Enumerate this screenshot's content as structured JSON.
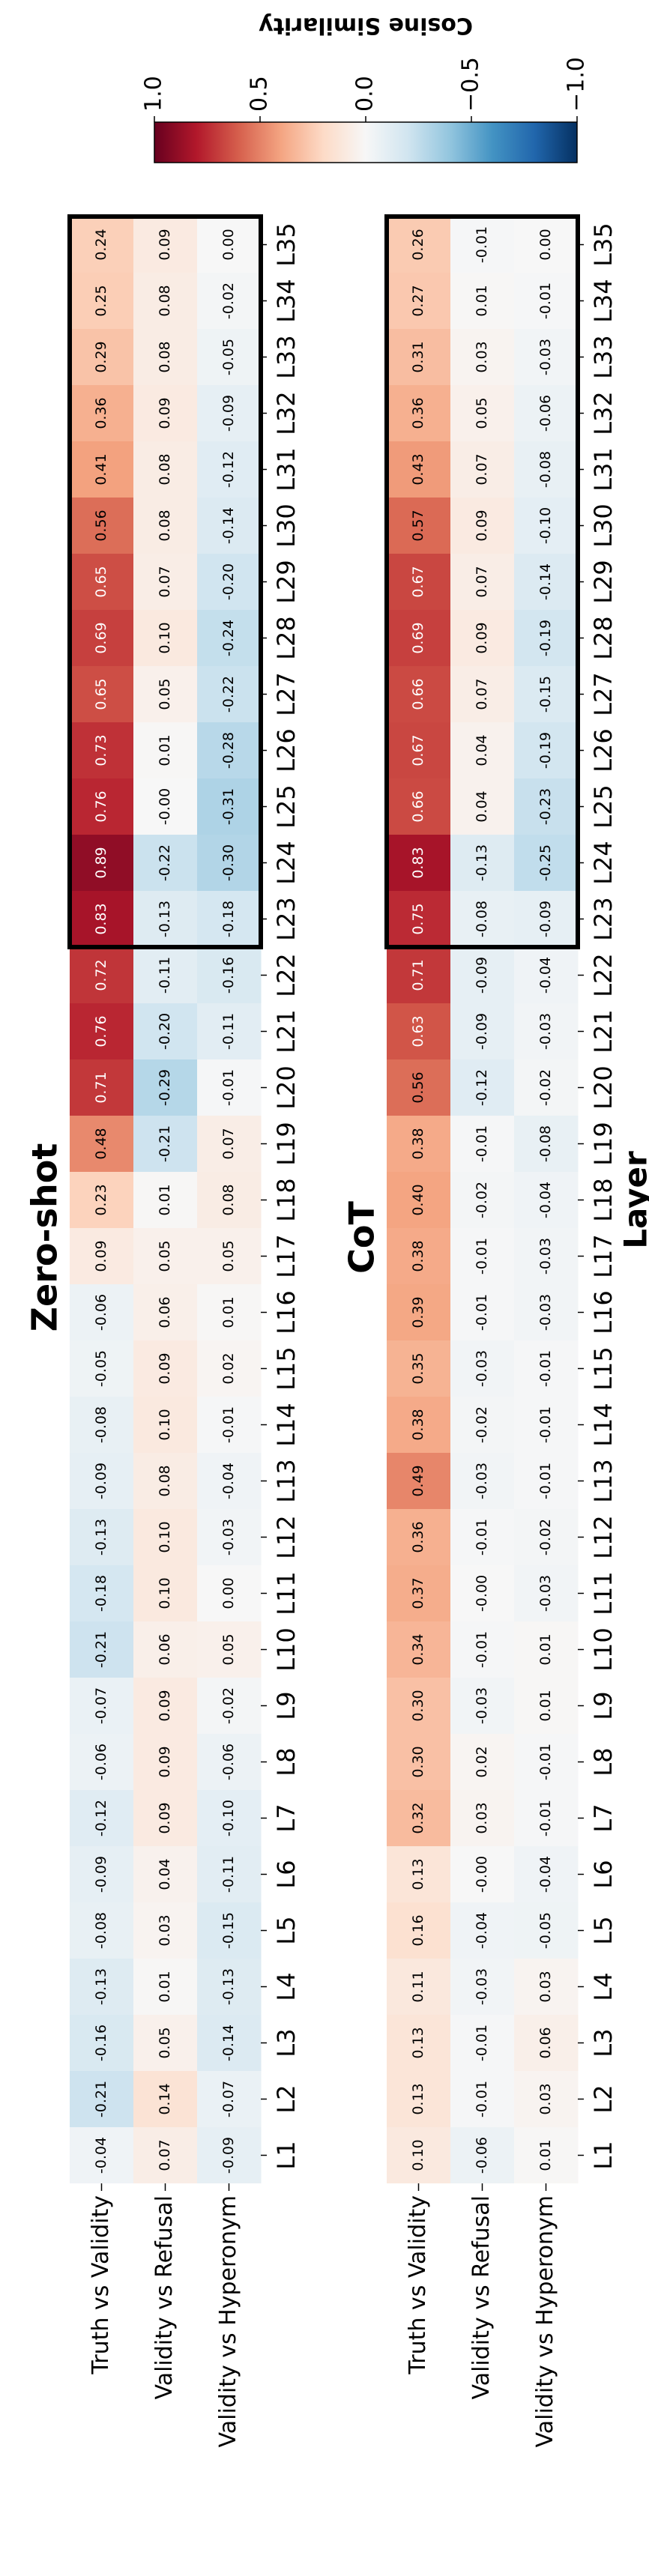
{
  "chart_data": [
    {
      "type": "heatmap",
      "title": "Zero-shot",
      "categories": [
        "L1",
        "L2",
        "L3",
        "L4",
        "L5",
        "L6",
        "L7",
        "L8",
        "L9",
        "L10",
        "L11",
        "L12",
        "L13",
        "L14",
        "L15",
        "L16",
        "L17",
        "L18",
        "L19",
        "L20",
        "L21",
        "L22",
        "L23",
        "L24",
        "L25",
        "L26",
        "L27",
        "L28",
        "L29",
        "L30",
        "L31",
        "L32",
        "L33",
        "L34",
        "L35"
      ],
      "series": [
        {
          "name": "Truth vs Validity",
          "values": [
            -0.04,
            -0.21,
            -0.16,
            -0.13,
            -0.08,
            -0.09,
            -0.12,
            -0.06,
            -0.07,
            -0.21,
            -0.18,
            -0.13,
            -0.09,
            -0.08,
            -0.05,
            -0.06,
            0.09,
            0.23,
            0.48,
            0.71,
            0.76,
            0.72,
            0.83,
            0.89,
            0.76,
            0.73,
            0.65,
            0.69,
            0.65,
            0.56,
            0.41,
            0.36,
            0.29,
            0.25,
            0.24
          ],
          "value_labels": [
            "-0.04",
            "-0.21",
            "-0.16",
            "-0.13",
            "-0.08",
            "-0.09",
            "-0.12",
            "-0.06",
            "-0.07",
            "-0.21",
            "-0.18",
            "-0.13",
            "-0.09",
            "-0.08",
            "-0.05",
            "-0.06",
            "0.09",
            "0.23",
            "0.48",
            "0.71",
            "0.76",
            "0.72",
            "0.83",
            "0.89",
            "0.76",
            "0.73",
            "0.65",
            "0.69",
            "0.65",
            "0.56",
            "0.41",
            "0.36",
            "0.29",
            "0.25",
            "0.24"
          ]
        },
        {
          "name": "Validity vs Refusal",
          "values": [
            0.07,
            0.14,
            0.05,
            0.01,
            0.03,
            0.04,
            0.09,
            0.09,
            0.09,
            0.06,
            0.1,
            0.1,
            0.08,
            0.1,
            0.09,
            0.06,
            0.05,
            0.01,
            -0.21,
            -0.29,
            -0.2,
            -0.11,
            -0.13,
            -0.22,
            0,
            0.01,
            0.05,
            0.1,
            0.07,
            0.08,
            0.08,
            0.09,
            0.08,
            0.08,
            0.09
          ],
          "value_labels": [
            "0.07",
            "0.14",
            "0.05",
            "0.01",
            "0.03",
            "0.04",
            "0.09",
            "0.09",
            "0.09",
            "0.06",
            "0.10",
            "0.10",
            "0.08",
            "0.10",
            "0.09",
            "0.06",
            "0.05",
            "0.01",
            "-0.21",
            "-0.29",
            "-0.20",
            "-0.11",
            "-0.13",
            "-0.22",
            "-0.00",
            "0.01",
            "0.05",
            "0.10",
            "0.07",
            "0.08",
            "0.08",
            "0.09",
            "0.08",
            "0.08",
            "0.09"
          ]
        },
        {
          "name": "Validity vs Hyperonym",
          "values": [
            -0.09,
            -0.07,
            -0.14,
            -0.13,
            -0.15,
            -0.11,
            -0.1,
            -0.06,
            -0.02,
            0.05,
            0,
            -0.03,
            -0.04,
            -0.01,
            0.02,
            0.01,
            0.05,
            0.08,
            0.07,
            -0.01,
            -0.11,
            -0.16,
            -0.18,
            -0.3,
            -0.31,
            -0.28,
            -0.22,
            -0.24,
            -0.2,
            -0.14,
            -0.12,
            -0.09,
            -0.05,
            -0.02,
            0
          ],
          "value_labels": [
            "-0.09",
            "-0.07",
            "-0.14",
            "-0.13",
            "-0.15",
            "-0.11",
            "-0.10",
            "-0.06",
            "-0.02",
            "0.05",
            "0.00",
            "-0.03",
            "-0.04",
            "-0.01",
            "0.02",
            "0.01",
            "0.05",
            "0.08",
            "0.07",
            "-0.01",
            "-0.11",
            "-0.16",
            "-0.18",
            "-0.30",
            "-0.31",
            "-0.28",
            "-0.22",
            "-0.24",
            "-0.20",
            "-0.14",
            "-0.12",
            "-0.09",
            "-0.05",
            "-0.02",
            "0.00"
          ]
        }
      ]
    },
    {
      "type": "heatmap",
      "title": "CoT",
      "xlabel": "Layer",
      "categories": [
        "L1",
        "L2",
        "L3",
        "L4",
        "L5",
        "L6",
        "L7",
        "L8",
        "L9",
        "L10",
        "L11",
        "L12",
        "L13",
        "L14",
        "L15",
        "L16",
        "L17",
        "L18",
        "L19",
        "L20",
        "L21",
        "L22",
        "L23",
        "L24",
        "L25",
        "L26",
        "L27",
        "L28",
        "L29",
        "L30",
        "L31",
        "L32",
        "L33",
        "L34",
        "L35"
      ],
      "series": [
        {
          "name": "Truth vs Validity",
          "values": [
            0.1,
            0.13,
            0.13,
            0.11,
            0.16,
            0.13,
            0.32,
            0.3,
            0.3,
            0.34,
            0.37,
            0.36,
            0.49,
            0.38,
            0.35,
            0.39,
            0.38,
            0.4,
            0.38,
            0.56,
            0.63,
            0.71,
            0.75,
            0.83,
            0.66,
            0.67,
            0.66,
            0.69,
            0.67,
            0.57,
            0.43,
            0.36,
            0.31,
            0.27,
            0.26
          ],
          "value_labels": [
            "0.10",
            "0.13",
            "0.13",
            "0.11",
            "0.16",
            "0.13",
            "0.32",
            "0.30",
            "0.30",
            "0.34",
            "0.37",
            "0.36",
            "0.49",
            "0.38",
            "0.35",
            "0.39",
            "0.38",
            "0.40",
            "0.38",
            "0.56",
            "0.63",
            "0.71",
            "0.75",
            "0.83",
            "0.66",
            "0.67",
            "0.66",
            "0.69",
            "0.67",
            "0.57",
            "0.43",
            "0.36",
            "0.31",
            "0.27",
            "0.26"
          ]
        },
        {
          "name": "Validity vs Refusal",
          "values": [
            -0.06,
            -0.01,
            -0.01,
            -0.03,
            -0.04,
            0,
            0.03,
            0.02,
            -0.03,
            -0.01,
            0,
            -0.01,
            -0.03,
            -0.02,
            -0.03,
            -0.01,
            -0.01,
            -0.02,
            -0.01,
            -0.12,
            -0.09,
            -0.09,
            -0.08,
            -0.13,
            0.04,
            0.04,
            0.07,
            0.09,
            0.07,
            0.09,
            0.07,
            0.05,
            0.03,
            0.01,
            -0.01
          ],
          "value_labels": [
            "-0.06",
            "-0.01",
            "-0.01",
            "-0.03",
            "-0.04",
            "-0.00",
            "0.03",
            "0.02",
            "-0.03",
            "-0.01",
            "-0.00",
            "-0.01",
            "-0.03",
            "-0.02",
            "-0.03",
            "-0.01",
            "-0.01",
            "-0.02",
            "-0.01",
            "-0.12",
            "-0.09",
            "-0.09",
            "-0.08",
            "-0.13",
            "0.04",
            "0.04",
            "0.07",
            "0.09",
            "0.07",
            "0.09",
            "0.07",
            "0.05",
            "0.03",
            "0.01",
            "-0.01"
          ]
        },
        {
          "name": "Validity vs Hyperonym",
          "values": [
            0.01,
            0.03,
            0.06,
            0.03,
            -0.05,
            -0.04,
            -0.01,
            -0.01,
            0.01,
            0.01,
            -0.03,
            -0.02,
            -0.01,
            -0.01,
            -0.01,
            -0.03,
            -0.03,
            -0.04,
            -0.08,
            -0.02,
            -0.03,
            -0.04,
            -0.09,
            -0.25,
            -0.23,
            -0.19,
            -0.15,
            -0.19,
            -0.14,
            -0.1,
            -0.08,
            -0.06,
            -0.03,
            -0.01,
            0
          ],
          "value_labels": [
            "0.01",
            "0.03",
            "0.06",
            "0.03",
            "-0.05",
            "-0.04",
            "-0.01",
            "-0.01",
            "0.01",
            "0.01",
            "-0.03",
            "-0.02",
            "-0.01",
            "-0.01",
            "-0.01",
            "-0.03",
            "-0.03",
            "-0.04",
            "-0.08",
            "-0.02",
            "-0.03",
            "-0.04",
            "-0.09",
            "-0.25",
            "-0.23",
            "-0.19",
            "-0.15",
            "-0.19",
            "-0.14",
            "-0.10",
            "-0.08",
            "-0.06",
            "-0.03",
            "-0.01",
            "0.00"
          ]
        }
      ]
    }
  ],
  "colorbar": {
    "label": "Cosine Similarity",
    "cmap": "RdBu_r",
    "lim": [
      -1,
      1
    ],
    "ticks": [
      {
        "value": 1,
        "label": "1.0"
      },
      {
        "value": 0.5,
        "label": "0.5"
      },
      {
        "value": 0,
        "label": "0.0"
      },
      {
        "value": -0.5,
        "label": "−0.5"
      },
      {
        "value": -1,
        "label": "−1.0"
      }
    ]
  }
}
